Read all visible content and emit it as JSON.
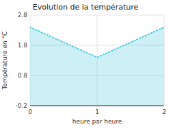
{
  "chart_data": {
    "type": "area",
    "title": "Evolution de la température",
    "xlabel": "heure par heure",
    "ylabel": "Température en °C",
    "x": [
      0,
      1,
      2
    ],
    "values": [
      2.4,
      1.4,
      2.4
    ],
    "xlim": [
      0,
      2
    ],
    "ylim": [
      -0.2,
      2.8
    ],
    "xticks": [
      0,
      1,
      2
    ],
    "yticks": [
      -0.2,
      0.8,
      1.8,
      2.8
    ],
    "color": "#55ccdd",
    "line_style": "dotted",
    "grid": true
  }
}
